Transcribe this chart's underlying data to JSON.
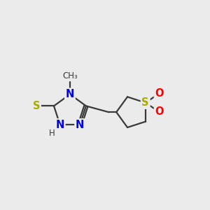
{
  "background_color": "#EBEBEB",
  "bond_color": "#3A3A3A",
  "bond_width": 1.6,
  "N_color": "#0000EE",
  "S_thiol_color": "#AAAA00",
  "S_ring_color": "#AAAA00",
  "O_color": "#FF0000",
  "text_color": "#3A3A3A",
  "xlim": [
    0.0,
    10.0
  ],
  "ylim": [
    1.5,
    7.5
  ],
  "figsize": [
    3.0,
    3.0
  ],
  "dpi": 100
}
